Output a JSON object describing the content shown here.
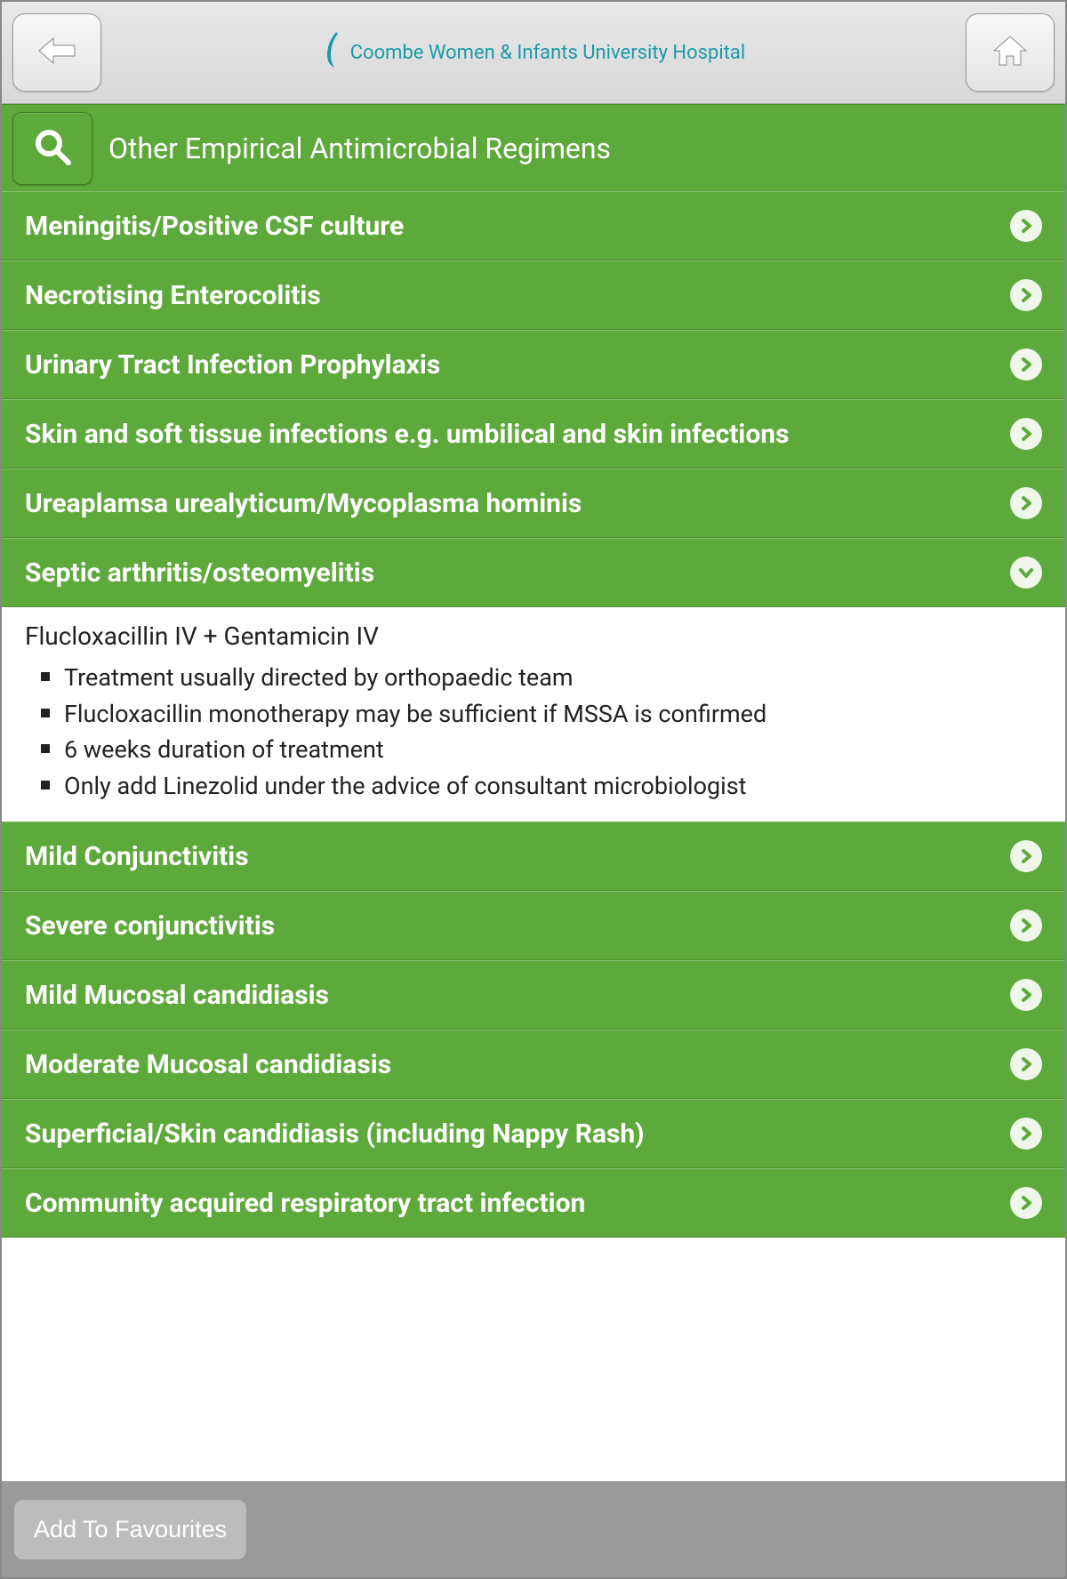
{
  "colors": {
    "accent": "#5ea93b",
    "header_bg": "#e0e0e0",
    "footer_bg": "#9a9a9a",
    "text_white": "#ffffff",
    "logo_color": "#1a9aa8"
  },
  "header": {
    "logo_text": "Coombe Women & Infants University Hospital"
  },
  "title_bar": {
    "title": "Other Empirical Antimicrobial Regimens"
  },
  "items": [
    {
      "label": "Meningitis/Positive CSF culture",
      "expanded": false
    },
    {
      "label": "Necrotising Enterocolitis",
      "expanded": false
    },
    {
      "label": "Urinary Tract Infection Prophylaxis",
      "expanded": false
    },
    {
      "label": "Skin and soft tissue infections e.g. umbilical and skin infections",
      "expanded": false
    },
    {
      "label": "Ureaplamsa urealyticum/Mycoplasma hominis",
      "expanded": false
    },
    {
      "label": "Septic arthritis/osteomyelitis",
      "expanded": true
    },
    {
      "label": "Mild Conjunctivitis",
      "expanded": false
    },
    {
      "label": "Severe conjunctivitis",
      "expanded": false
    },
    {
      "label": "Mild Mucosal candidiasis",
      "expanded": false
    },
    {
      "label": "Moderate Mucosal candidiasis",
      "expanded": false
    },
    {
      "label": "Superficial/Skin candidiasis (including Nappy Rash)",
      "expanded": false
    },
    {
      "label": "Community acquired respiratory tract infection",
      "expanded": false
    }
  ],
  "expanded_detail": {
    "heading": "Flucloxacillin IV + Gentamicin IV",
    "bullets": [
      "Treatment usually directed by orthopaedic team",
      "Flucloxacillin monotherapy may be sufficient if MSSA is confirmed",
      "6 weeks duration of treatment",
      "Only add Linezolid under the advice of consultant microbiologist"
    ]
  },
  "footer": {
    "favourites_label": "Add To Favourites"
  }
}
